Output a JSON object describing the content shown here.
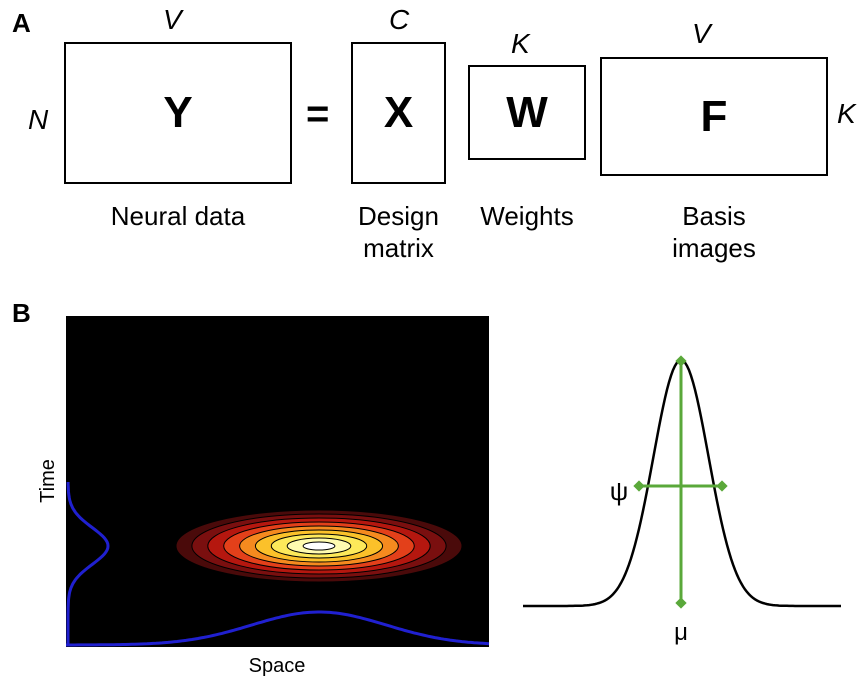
{
  "panel_a": {
    "label": "A",
    "equals": "=",
    "matrices": [
      {
        "key": "y",
        "letter": "Y",
        "top_dim": "V",
        "side_dim": "N",
        "caption_lines": [
          "Neural data"
        ]
      },
      {
        "key": "x",
        "letter": "X",
        "top_dim": "C",
        "caption_lines": [
          "Design",
          "matrix"
        ]
      },
      {
        "key": "w",
        "letter": "W",
        "top_dim": "K",
        "caption_lines": [
          "Weights"
        ]
      },
      {
        "key": "f",
        "letter": "F",
        "top_dim": "V",
        "side_dim": "K",
        "caption_lines": [
          "Basis",
          "images"
        ]
      }
    ]
  },
  "panel_b": {
    "label": "B",
    "heatmap": {
      "ylabel": "Time",
      "xlabel": "Space",
      "contour_colors": [
        "#4a0a0a",
        "#7a0f0f",
        "#b5170f",
        "#e3401a",
        "#f58a1f",
        "#fbc12a",
        "#fde95a",
        "#fffbb0",
        "#ffffff"
      ],
      "marginal_color": "#2020d0",
      "background": "#000000"
    },
    "gaussian": {
      "width_symbol": "ψ",
      "center_symbol": "μ",
      "curve_color": "#000000",
      "marker_color": "#5aa83a"
    }
  }
}
